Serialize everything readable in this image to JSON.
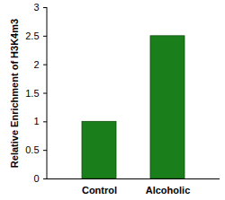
{
  "chart_data": {
    "type": "bar",
    "categories": [
      "Control",
      "Alcoholic"
    ],
    "values": [
      1,
      2.5
    ],
    "color": "#1a7f1a",
    "y_label": "Relative Enrichment of H3K4m3",
    "ylim": [
      0,
      3
    ],
    "yticks": [
      0,
      0.5,
      1,
      1.5,
      2,
      2.5,
      3
    ],
    "grid": false
  }
}
